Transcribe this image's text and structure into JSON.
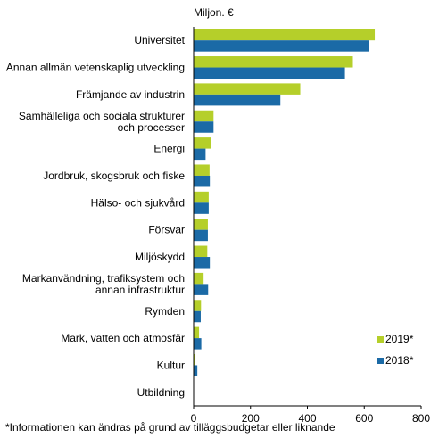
{
  "chart_data": {
    "type": "bar",
    "orientation": "horizontal",
    "ylabel_top": "Miljon. €",
    "categories": [
      [
        "Universitet"
      ],
      [
        "Annan allmän vetenskaplig utveckling"
      ],
      [
        "Främjande av industrin"
      ],
      [
        "Samhälleliga och sociala strukturer",
        "och processer"
      ],
      [
        "Energi"
      ],
      [
        "Jordbruk, skogsbruk och fiske"
      ],
      [
        "Hälso- och sjukvård"
      ],
      [
        "Försvar"
      ],
      [
        "Miljöskydd"
      ],
      [
        "Markanvändning, trafiksystem och",
        "annan infrastruktur"
      ],
      [
        "Rymden"
      ],
      [
        "Mark, vatten och atmosfär"
      ],
      [
        "Kultur"
      ],
      [
        "Utbildning"
      ]
    ],
    "series": [
      {
        "name": "2019*",
        "color": "#b5cf2a",
        "values": [
          637,
          560,
          375,
          70,
          62,
          56,
          53,
          50,
          48,
          35,
          26,
          19,
          6,
          0
        ]
      },
      {
        "name": "2018*",
        "color": "#1b6aa6",
        "values": [
          617,
          532,
          305,
          70,
          42,
          57,
          53,
          50,
          57,
          51,
          25,
          27,
          13,
          0
        ]
      }
    ],
    "xlim": [
      0,
      800
    ],
    "xticks": [
      0,
      200,
      400,
      600,
      800
    ],
    "grid": false,
    "legend_position": "lower-right"
  },
  "footnote": "*Informationen kan ändras på grund av tilläggsbudgetar eller liknande"
}
